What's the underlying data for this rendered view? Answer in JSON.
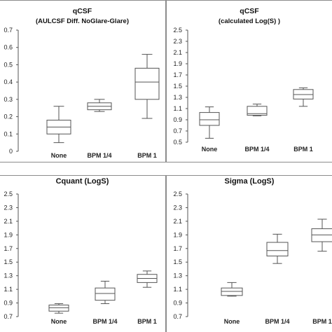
{
  "chart_data": [
    {
      "type": "box",
      "title": "qCSF",
      "subtitle": "(AULCSF Diff. NoGlare-Glare)",
      "categories": [
        "None",
        "BPM 1/4",
        "BPM 1"
      ],
      "ylim": [
        0,
        0.7
      ],
      "yticks": [
        "0",
        "0.1",
        "0.2",
        "0.3",
        "0.4",
        "0.5",
        "0.6",
        "0.7"
      ],
      "boxes": [
        {
          "min": 0.05,
          "q1": 0.1,
          "median": 0.14,
          "q3": 0.18,
          "max": 0.26
        },
        {
          "min": 0.23,
          "q1": 0.24,
          "median": 0.26,
          "q3": 0.28,
          "max": 0.3
        },
        {
          "min": 0.19,
          "q1": 0.3,
          "median": 0.4,
          "q3": 0.48,
          "max": 0.56
        }
      ]
    },
    {
      "type": "box",
      "title": "qCSF",
      "subtitle": "(calculated Log(S) )",
      "categories": [
        "None",
        "BPM 1/4",
        "BPM 1"
      ],
      "ylim": [
        0.5,
        2.5
      ],
      "yticks": [
        "0.5",
        "0.7",
        "0.9",
        "1.1",
        "1.3",
        "1.5",
        "1.7",
        "1.9",
        "2.1",
        "2.3",
        "2.5"
      ],
      "boxes": [
        {
          "min": 0.57,
          "q1": 0.8,
          "median": 0.9,
          "q3": 1.03,
          "max": 1.13
        },
        {
          "min": 0.97,
          "q1": 0.98,
          "median": 1.01,
          "q3": 1.14,
          "max": 1.18
        },
        {
          "min": 1.14,
          "q1": 1.27,
          "median": 1.35,
          "q3": 1.44,
          "max": 1.47
        }
      ]
    },
    {
      "type": "box",
      "title": "Cquant (LogS)",
      "subtitle": "",
      "categories": [
        "None",
        "BPM 1/4",
        "BPM 1"
      ],
      "ylim": [
        0.7,
        2.5
      ],
      "yticks": [
        "0.7",
        "0.9",
        "1.1",
        "1.3",
        "1.5",
        "1.7",
        "1.9",
        "2.1",
        "2.3",
        "2.5"
      ],
      "boxes": [
        {
          "min": 0.75,
          "q1": 0.78,
          "median": 0.83,
          "q3": 0.87,
          "max": 0.89
        },
        {
          "min": 0.89,
          "q1": 0.94,
          "median": 1.04,
          "q3": 1.12,
          "max": 1.22
        },
        {
          "min": 1.13,
          "q1": 1.2,
          "median": 1.26,
          "q3": 1.32,
          "max": 1.37
        }
      ]
    },
    {
      "type": "box",
      "title": "Sigma (LogS)",
      "subtitle": "",
      "categories": [
        "None",
        "BPM 1/4",
        "BPM 1"
      ],
      "ylim": [
        0.7,
        2.5
      ],
      "yticks": [
        "0.7",
        "0.9",
        "1.1",
        "1.3",
        "1.5",
        "1.7",
        "1.9",
        "2.1",
        "2.3",
        "2.5"
      ],
      "boxes": [
        {
          "min": 1.0,
          "q1": 1.01,
          "median": 1.07,
          "q3": 1.12,
          "max": 1.2
        },
        {
          "min": 1.48,
          "q1": 1.59,
          "median": 1.67,
          "q3": 1.79,
          "max": 1.91
        },
        {
          "min": 1.66,
          "q1": 1.8,
          "median": 1.9,
          "q3": 1.99,
          "max": 2.13
        }
      ]
    }
  ]
}
